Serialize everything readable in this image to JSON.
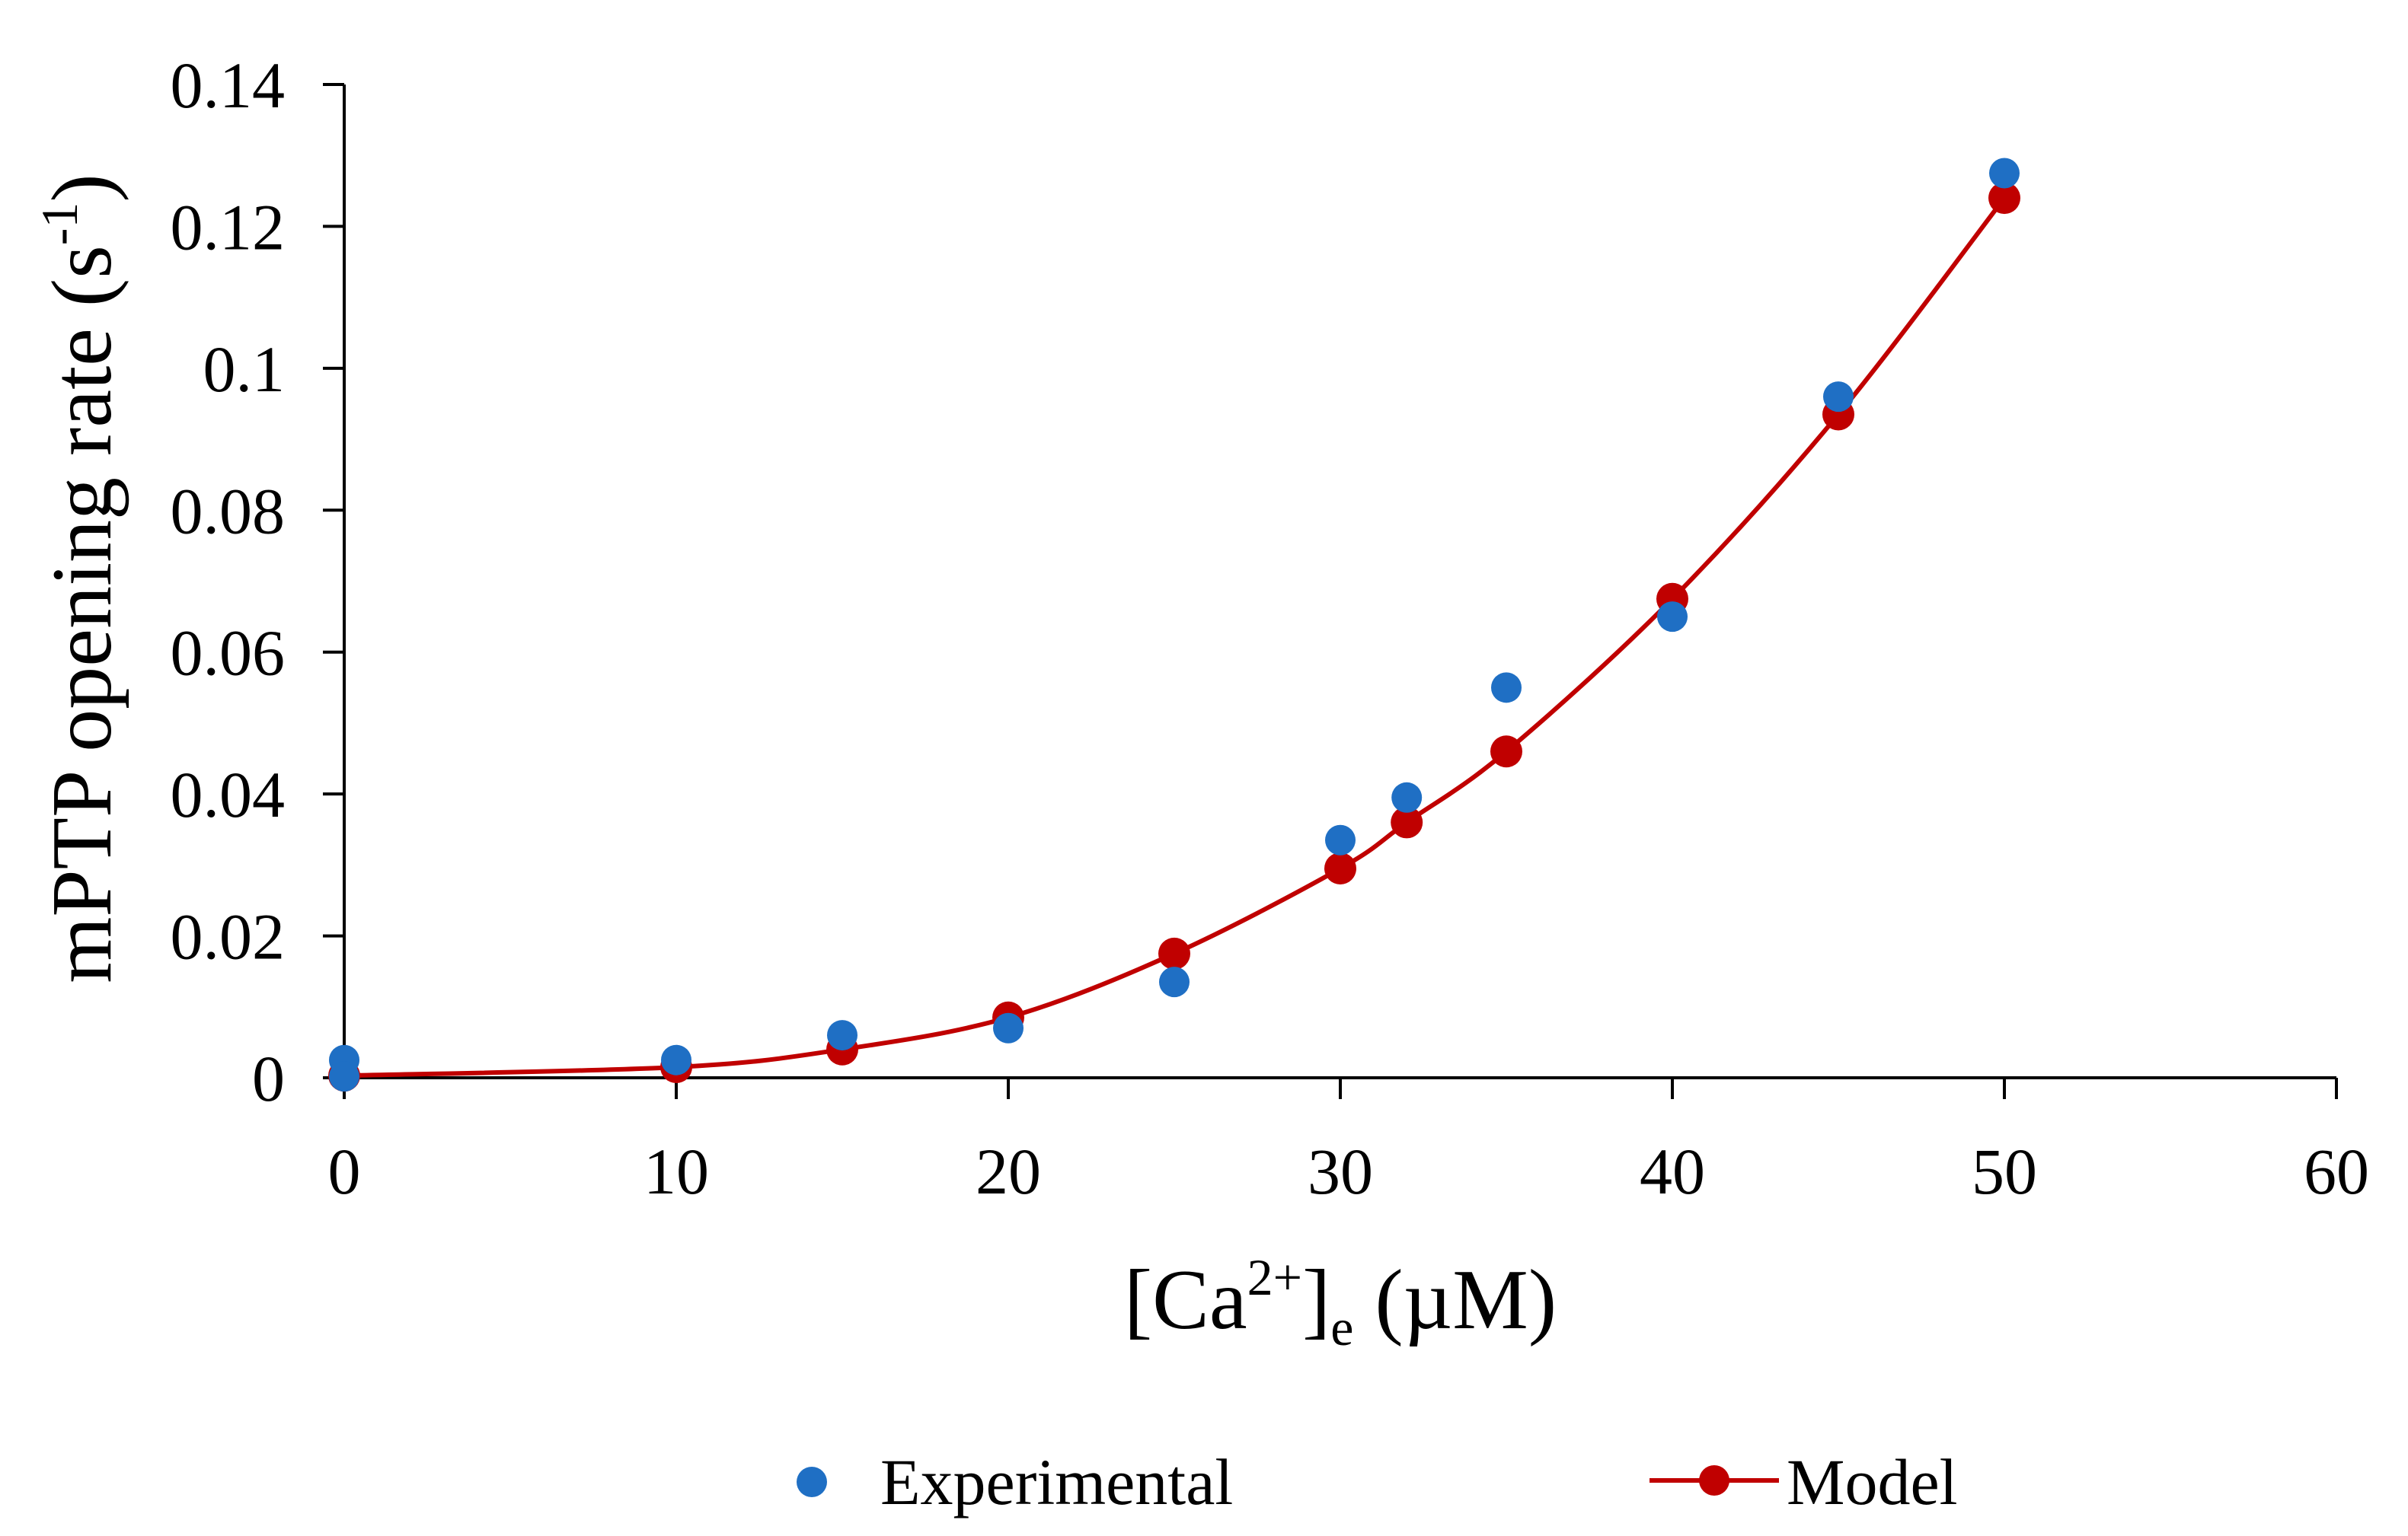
{
  "chart_data": {
    "type": "scatter",
    "title": "",
    "xlabel": {
      "prefix": "[Ca",
      "superscript": "2+",
      "bracket": "]",
      "subscript": "e",
      "suffix": " (µM)"
    },
    "ylabel": {
      "prefix": "mPTP opening rate (s",
      "superscript": "-1",
      "suffix": ")"
    },
    "xlim": [
      0,
      60
    ],
    "ylim": [
      0,
      0.14
    ],
    "x_ticks": [
      {
        "value": 0,
        "label": "0"
      },
      {
        "value": 10,
        "label": "10"
      },
      {
        "value": 20,
        "label": "20"
      },
      {
        "value": 30,
        "label": "30"
      },
      {
        "value": 40,
        "label": "40"
      },
      {
        "value": 50,
        "label": "50"
      },
      {
        "value": 60,
        "label": "60"
      }
    ],
    "y_ticks": [
      {
        "value": 0,
        "label": "0"
      },
      {
        "value": 0.02,
        "label": "0.02"
      },
      {
        "value": 0.04,
        "label": "0.04"
      },
      {
        "value": 0.06,
        "label": "0.06"
      },
      {
        "value": 0.08,
        "label": "0.08"
      },
      {
        "value": 0.1,
        "label": "0.1"
      },
      {
        "value": 0.12,
        "label": "0.12"
      },
      {
        "value": 0.14,
        "label": "0.14"
      }
    ],
    "grid": false,
    "legend_position": "bottom",
    "series": [
      {
        "name": "Experimental",
        "kind": "scatter",
        "color": "#1f6fc4",
        "points": [
          [
            0,
            0.0025
          ],
          [
            0,
            0.0002
          ],
          [
            10,
            0.0025
          ],
          [
            15,
            0.006
          ],
          [
            20,
            0.007
          ],
          [
            25,
            0.0135
          ],
          [
            30,
            0.0335
          ],
          [
            32,
            0.0395
          ],
          [
            35,
            0.055
          ],
          [
            40,
            0.065
          ],
          [
            45,
            0.096
          ],
          [
            50,
            0.1275
          ]
        ]
      },
      {
        "name": "Model",
        "kind": "line-marker",
        "color": "#c00000",
        "points": [
          [
            0,
            0.0003
          ],
          [
            10,
            0.0015
          ],
          [
            15,
            0.004
          ],
          [
            20,
            0.0085
          ],
          [
            25,
            0.0175
          ],
          [
            30,
            0.0295
          ],
          [
            32,
            0.036
          ],
          [
            35,
            0.046
          ],
          [
            40,
            0.0675
          ],
          [
            45,
            0.0935
          ],
          [
            50,
            0.124
          ]
        ]
      }
    ]
  }
}
